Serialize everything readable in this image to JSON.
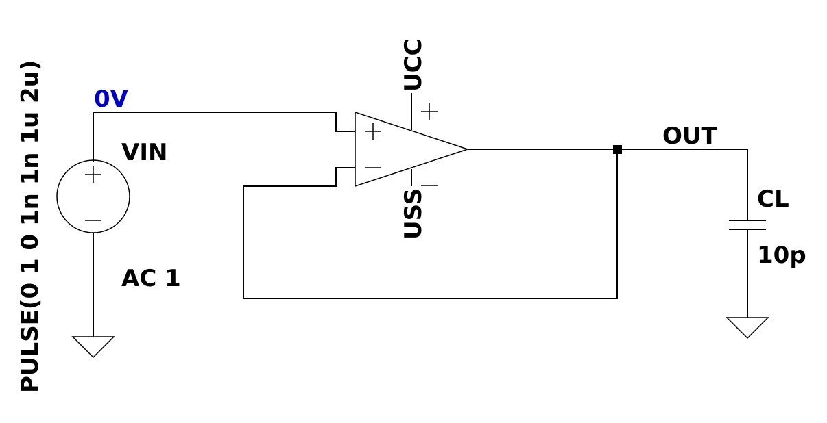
{
  "labels": {
    "input_net": "0V",
    "source_name": "VIN",
    "source_ac": "AC 1",
    "source_pulse": "PULSE(0 1 0 1n 1n 1u 2u)",
    "supply_pos": "UCC",
    "supply_neg": "USS",
    "output_net": "OUT",
    "cap_name": "CL",
    "cap_value": "10p"
  },
  "colors": {
    "wire": "#000000",
    "net_label": "#0000c8",
    "background": "#ffffff"
  }
}
